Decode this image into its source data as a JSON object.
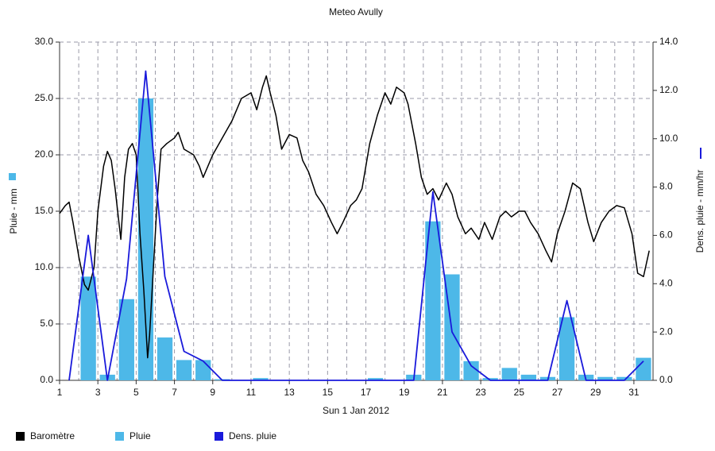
{
  "chart_data": {
    "type": "combo",
    "title": "Meteo  Avully",
    "x_label": "Sun 1 Jan 2012",
    "y_label": "Pluie - mm",
    "y2_label": "Dens. pluie - mm/hr",
    "xlim": [
      1,
      32
    ],
    "xticks": [
      1,
      3,
      5,
      7,
      9,
      11,
      13,
      15,
      17,
      19,
      21,
      23,
      25,
      27,
      29,
      31
    ],
    "ylim": [
      0,
      30
    ],
    "yticks": [
      {
        "value": 0,
        "label": "0.0"
      },
      {
        "value": 5,
        "label": "5.0"
      },
      {
        "value": 10,
        "label": "10.0"
      },
      {
        "value": 15,
        "label": "15.0"
      },
      {
        "value": 20,
        "label": "20.0"
      },
      {
        "value": 25,
        "label": "25.0"
      },
      {
        "value": 30,
        "label": "30.0"
      }
    ],
    "y2lim": [
      0,
      14
    ],
    "y2ticks": [
      {
        "value": 0,
        "label": "0.0"
      },
      {
        "value": 2,
        "label": "2.0"
      },
      {
        "value": 4,
        "label": "4.0"
      },
      {
        "value": 6,
        "label": "6.0"
      },
      {
        "value": 8,
        "label": "8.0"
      },
      {
        "value": 10,
        "label": "10.0"
      },
      {
        "value": 12,
        "label": "12.0"
      },
      {
        "value": 14,
        "label": "14.0"
      }
    ],
    "grid": true,
    "series": [
      {
        "name": "Baromètre",
        "type": "line",
        "color": "#000000",
        "x": [
          1,
          1.3,
          1.5,
          1.7,
          2,
          2.3,
          2.5,
          2.8,
          3,
          3.3,
          3.5,
          3.7,
          3.9,
          4.1,
          4.2,
          4.4,
          4.6,
          4.8,
          5,
          5.2,
          5.4,
          5.5,
          5.6,
          5.7,
          5.9,
          6.1,
          6.3,
          6.6,
          7,
          7.2,
          7.5,
          8,
          8.3,
          8.5,
          9,
          9.5,
          10,
          10.5,
          11,
          11.3,
          11.6,
          11.8,
          12,
          12.3,
          12.6,
          13,
          13.4,
          13.7,
          14,
          14.4,
          14.8,
          15.2,
          15.5,
          15.8,
          16.2,
          16.5,
          16.8,
          17.2,
          17.6,
          18,
          18.3,
          18.6,
          19,
          19.2,
          19.6,
          19.9,
          20.2,
          20.5,
          20.8,
          21.2,
          21.5,
          21.8,
          22.2,
          22.5,
          22.9,
          23.2,
          23.6,
          24,
          24.3,
          24.6,
          25,
          25.3,
          25.6,
          26,
          26.4,
          26.7,
          27,
          27.4,
          27.8,
          28.2,
          28.6,
          28.9,
          29.3,
          29.7,
          30.1,
          30.5,
          30.9,
          31.2,
          31.5,
          31.8
        ],
        "values": [
          14.8,
          15.5,
          15.8,
          14,
          11,
          8.5,
          8,
          10,
          15,
          19,
          20.3,
          19.5,
          17,
          14,
          12.5,
          18,
          20.5,
          21,
          20,
          13,
          8,
          5,
          2,
          4,
          10,
          16,
          20.5,
          21,
          21.5,
          22,
          20.5,
          20,
          19,
          18,
          20,
          21.5,
          23,
          25,
          25.5,
          24,
          26,
          27,
          25.5,
          23.5,
          20.5,
          21.8,
          21.5,
          19.5,
          18.5,
          16.5,
          15.5,
          14,
          13,
          14,
          15.5,
          16,
          17,
          21,
          23.5,
          25.5,
          24.5,
          26,
          25.5,
          24.5,
          21,
          18,
          16.5,
          17,
          16,
          17.5,
          16.5,
          14.5,
          13,
          13.5,
          12.5,
          14,
          12.5,
          14.5,
          15,
          14.5,
          15,
          15,
          14,
          13,
          11.5,
          10.5,
          13,
          15,
          17.5,
          17,
          14,
          12.3,
          14,
          15,
          15.5,
          15.3,
          13,
          9.5,
          9.2,
          11.5
        ]
      },
      {
        "name": "Pluie",
        "type": "bar",
        "color": "#4db8e8",
        "x": [
          1,
          2,
          3,
          4,
          5,
          6,
          7,
          8,
          9,
          10,
          11,
          12,
          13,
          14,
          15,
          16,
          17,
          18,
          19,
          20,
          21,
          22,
          23,
          24,
          25,
          26,
          27,
          28,
          29,
          30,
          31
        ],
        "values": [
          0,
          9.2,
          0.5,
          7.2,
          25,
          3.8,
          1.8,
          1.8,
          0.1,
          0,
          0.2,
          0,
          0,
          0,
          0,
          0,
          0.2,
          0,
          0.5,
          14.1,
          9.4,
          1.7,
          0.2,
          1.1,
          0.5,
          0.3,
          5.6,
          0.5,
          0.3,
          0.3,
          2.0
        ]
      },
      {
        "name": "Dens. pluie",
        "type": "line",
        "axis": "y2",
        "color": "#1a1adb",
        "x": [
          1.5,
          2.5,
          3.5,
          4.5,
          5.5,
          6.5,
          7.5,
          8.5,
          9.5,
          10.5,
          11.5,
          12.5,
          13.5,
          14.5,
          15.5,
          16.5,
          17.5,
          18.5,
          19.5,
          20.5,
          21.5,
          22.5,
          23.5,
          24.5,
          25.5,
          26.5,
          27.5,
          28.5,
          29.5,
          30.5,
          31.5
        ],
        "values": [
          0,
          6.0,
          0,
          4.2,
          12.8,
          4.3,
          1.2,
          0.8,
          0,
          0,
          0,
          0,
          0,
          0,
          0,
          0,
          0,
          0,
          0,
          7.8,
          2.0,
          0.6,
          0,
          0,
          0,
          0,
          3.3,
          0,
          0,
          0,
          0.8
        ]
      }
    ]
  }
}
